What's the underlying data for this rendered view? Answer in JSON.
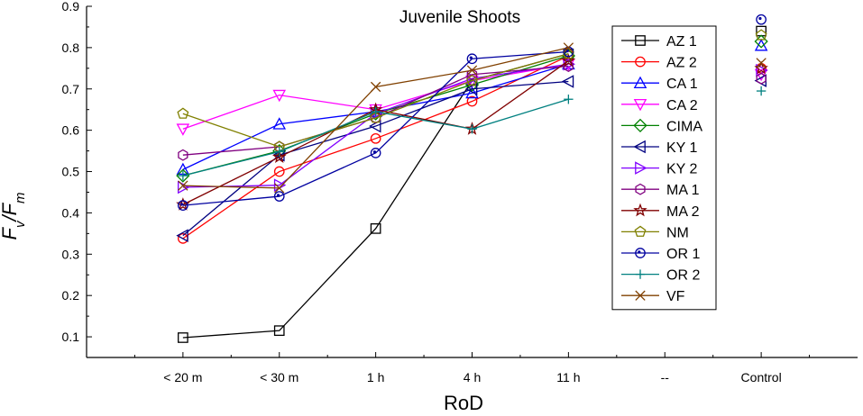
{
  "chart_data": {
    "type": "line",
    "title": "Juvenile Shoots",
    "xlabel": "RoD",
    "ylabel": {
      "main": "F",
      "sub1": "v",
      "sep": "/F",
      "sub2": "m"
    },
    "categories": [
      "< 20 m",
      "< 30 m",
      "1 h",
      "4 h",
      "11 h",
      "--",
      "Control"
    ],
    "ylim": [
      0.05,
      0.9
    ],
    "yticks": [
      0.1,
      0.2,
      0.3,
      0.4,
      0.5,
      0.6,
      0.7,
      0.8,
      0.9
    ],
    "ytick_labels": [
      "0.1",
      "0.2",
      "0.3",
      "0.4",
      "0.5",
      "0.6",
      "0.7",
      "0.8",
      "0.9"
    ],
    "legend_position": "top-right",
    "series": [
      {
        "name": "AZ 1",
        "color": "#000000",
        "marker": "square",
        "values": [
          0.098,
          0.115,
          0.362,
          0.72,
          0.785,
          null,
          0.84
        ]
      },
      {
        "name": "AZ 2",
        "color": "#ff0000",
        "marker": "circle",
        "values": [
          0.338,
          0.5,
          0.58,
          0.67,
          0.78,
          null,
          0.75
        ]
      },
      {
        "name": "CA 1",
        "color": "#0000ff",
        "marker": "triangle-up",
        "values": [
          0.505,
          0.615,
          0.645,
          0.69,
          0.76,
          null,
          0.805
        ]
      },
      {
        "name": "CA 2",
        "color": "#ff00ff",
        "marker": "triangle-down",
        "values": [
          0.603,
          0.685,
          0.65,
          0.72,
          0.76,
          null,
          0.735
        ]
      },
      {
        "name": "CIMA",
        "color": "#008000",
        "marker": "diamond",
        "values": [
          0.49,
          0.55,
          0.64,
          0.71,
          0.78,
          null,
          0.815
        ]
      },
      {
        "name": "KY 1",
        "color": "#000080",
        "marker": "triangle-left",
        "values": [
          0.345,
          0.54,
          0.61,
          0.7,
          0.718,
          null,
          0.72
        ]
      },
      {
        "name": "KY 2",
        "color": "#8000ff",
        "marker": "triangle-right",
        "values": [
          0.462,
          0.467,
          0.64,
          0.725,
          0.76,
          null,
          0.745
        ]
      },
      {
        "name": "MA 1",
        "color": "#800080",
        "marker": "hexagon",
        "values": [
          0.54,
          0.56,
          0.63,
          0.735,
          0.755,
          null,
          0.725
        ]
      },
      {
        "name": "MA 2",
        "color": "#800000",
        "marker": "star",
        "values": [
          0.42,
          0.535,
          0.65,
          0.603,
          0.768,
          null,
          0.75
        ]
      },
      {
        "name": "NM",
        "color": "#808000",
        "marker": "pentagon",
        "values": [
          0.64,
          0.56,
          0.63,
          0.72,
          0.785,
          null,
          0.83
        ]
      },
      {
        "name": "OR 1",
        "color": "#0000a0",
        "marker": "circle-dot",
        "values": [
          0.418,
          0.44,
          0.545,
          0.773,
          0.79,
          null,
          0.868
        ]
      },
      {
        "name": "OR 2",
        "color": "#008080",
        "marker": "plus",
        "values": [
          0.49,
          0.548,
          0.645,
          0.603,
          0.675,
          null,
          0.695
        ]
      },
      {
        "name": "VF",
        "color": "#804000",
        "marker": "x",
        "values": [
          0.466,
          0.46,
          0.705,
          0.745,
          0.8,
          null,
          0.763
        ]
      }
    ]
  }
}
